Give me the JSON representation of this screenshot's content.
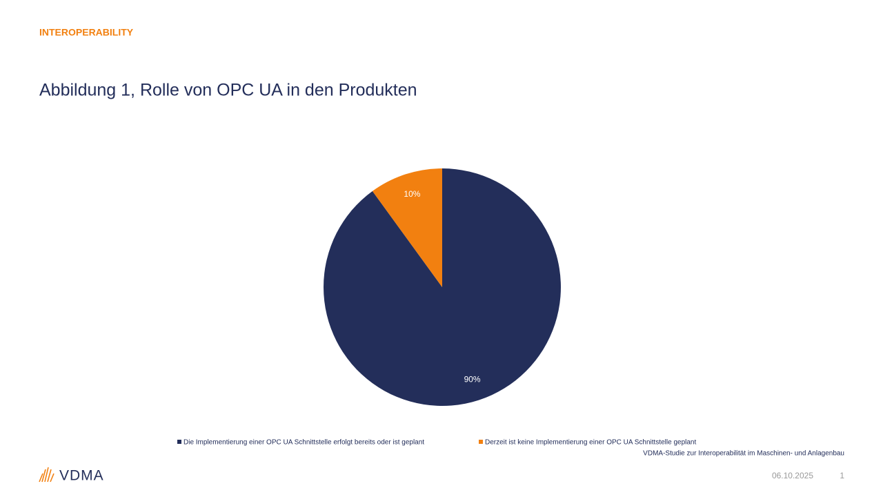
{
  "header": {
    "kicker": "INTEROPERABILITY",
    "title": "Abbildung 1, Rolle von OPC UA in den Produkten"
  },
  "chart_data": {
    "type": "pie",
    "categories": [
      "Die Implementierung einer OPC UA Schnittstelle erfolgt bereits oder ist geplant",
      "Derzeit ist keine Implementierung einer OPC UA Schnittstelle geplant"
    ],
    "values": [
      90,
      10
    ],
    "value_labels": [
      "90%",
      "10%"
    ],
    "colors": [
      "#232e5a",
      "#f28010"
    ],
    "source": "VDMA-Studie zur Interoperabilität im Maschinen- und Anlagenbau"
  },
  "footer": {
    "logo": "VDMA",
    "date": "06.10.2025",
    "page": "1"
  }
}
